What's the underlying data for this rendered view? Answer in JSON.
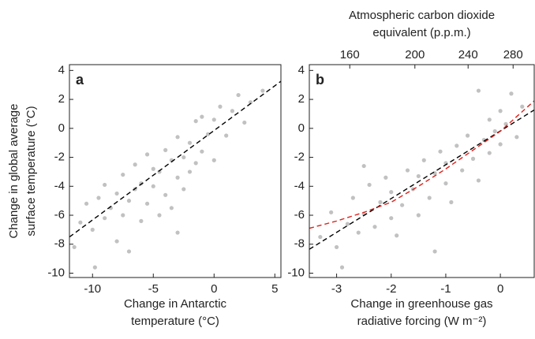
{
  "chart_data": [
    {
      "type": "scatter",
      "panel_label": "a",
      "ylabel": [
        "Change in global average",
        "surface temperature (°C)"
      ],
      "xlabel": [
        "Change in Antarctic",
        "temperature (°C)"
      ],
      "xlim": [
        -11.9,
        5.5
      ],
      "ylim": [
        -10.3,
        4.4
      ],
      "xticks": [
        -10,
        -5,
        0,
        5
      ],
      "yticks": [
        4,
        2,
        0,
        -2,
        -4,
        -6,
        -8,
        -10
      ],
      "points": {
        "color": "#333333",
        "x": [
          -11,
          -10.5,
          -10,
          -9.5,
          -9,
          -9,
          -8.5,
          -8,
          -8,
          -7.5,
          -7.5,
          -7,
          -7,
          -6.5,
          -6.5,
          -6,
          -6,
          -5.5,
          -5.5,
          -5,
          -5,
          -4.5,
          -4.5,
          -4,
          -4,
          -3.5,
          -3.5,
          -3,
          -3,
          -2.5,
          -2.5,
          -2,
          -2,
          -1.5,
          -1.5,
          -1,
          -1,
          -0.5,
          0,
          0,
          0.5,
          1,
          1.5,
          2,
          2.5,
          3,
          -11.5,
          -9.8,
          -3,
          4
        ],
        "y": [
          -6.5,
          -5.2,
          -7,
          -4.8,
          -6.2,
          -3.9,
          -5.5,
          -7.8,
          -4.5,
          -6,
          -3.2,
          -5,
          -8.5,
          -4.2,
          -2.5,
          -6.4,
          -3.8,
          -5.2,
          -1.8,
          -4,
          -2.8,
          -6,
          -3,
          -1.5,
          -4.6,
          -2.2,
          -5.5,
          -3.4,
          -0.6,
          -2,
          -4.2,
          -1,
          -3,
          0.5,
          -2.4,
          -1.6,
          0.8,
          -0.4,
          0.6,
          -2.2,
          1.5,
          -0.5,
          1.2,
          2.3,
          0.4,
          1.8,
          -8.2,
          -9.6,
          -7.2,
          2.6
        ]
      },
      "fit_lines": [
        {
          "color": "#000000",
          "x": [
            -11.9,
            5.5
          ],
          "y": [
            -7.5,
            3.25
          ]
        }
      ]
    },
    {
      "type": "scatter",
      "panel_label": "b",
      "x2label": [
        "Atmospheric carbon dioxide",
        "equivalent (p.p.m.)"
      ],
      "xlabel": [
        "Change in greenhouse gas",
        "radiative forcing (W m⁻²)"
      ],
      "xlim": [
        -3.5,
        0.62
      ],
      "ylim": [
        -10.3,
        4.4
      ],
      "x2lim": [
        139.3,
        301
      ],
      "x2scale": "log",
      "xticks": [
        -3,
        -2,
        -1,
        0
      ],
      "x2ticks": [
        160,
        200,
        240,
        280
      ],
      "yticks": [
        4,
        2,
        0,
        -2,
        -4,
        -6,
        -8,
        -10
      ],
      "points": {
        "color": "#333333",
        "x": [
          -3.3,
          -3.1,
          -3,
          -2.8,
          -2.7,
          -2.6,
          -2.5,
          -2.4,
          -2.3,
          -2.2,
          -2.1,
          -2,
          -2,
          -1.9,
          -1.8,
          -1.7,
          -1.6,
          -1.5,
          -1.5,
          -1.4,
          -1.3,
          -1.2,
          -1.1,
          -1,
          -1,
          -0.9,
          -0.8,
          -0.7,
          -0.6,
          -0.5,
          -0.4,
          -0.3,
          -0.2,
          -0.2,
          -0.1,
          0,
          0,
          0.1,
          0.2,
          0.3,
          0.4,
          -2.9,
          -1.2,
          -0.4,
          -2.5
        ],
        "y": [
          -7.5,
          -5.8,
          -8.2,
          -6.6,
          -4.8,
          -7.2,
          -5.9,
          -3.9,
          -6.8,
          -5.1,
          -3.4,
          -6.2,
          -4.4,
          -7.4,
          -5.3,
          -2.9,
          -4.2,
          -6,
          -3.3,
          -2.2,
          -4.8,
          -3.1,
          -1.6,
          -3.8,
          -2.4,
          -5.1,
          -1.2,
          -2.9,
          -0.5,
          -2.1,
          -3.6,
          -0.8,
          0.6,
          -1.7,
          -0.2,
          1.2,
          -1.1,
          0.3,
          2.4,
          -0.6,
          1.5,
          -9.6,
          -8.5,
          2.6,
          -2.6
        ]
      },
      "fit_lines": [
        {
          "color": "#000000",
          "x": [
            -3.5,
            0.62
          ],
          "y": [
            -8.35,
            1.27
          ]
        },
        {
          "color": "#e0201b",
          "x": [
            -3.5,
            -3,
            -2.5,
            -2,
            -1.5,
            -1,
            -0.5,
            0,
            0.62
          ],
          "y": [
            -6.9,
            -6.4,
            -5.8,
            -5.1,
            -4,
            -2.8,
            -1.5,
            -0.2,
            1.9
          ]
        }
      ]
    }
  ]
}
